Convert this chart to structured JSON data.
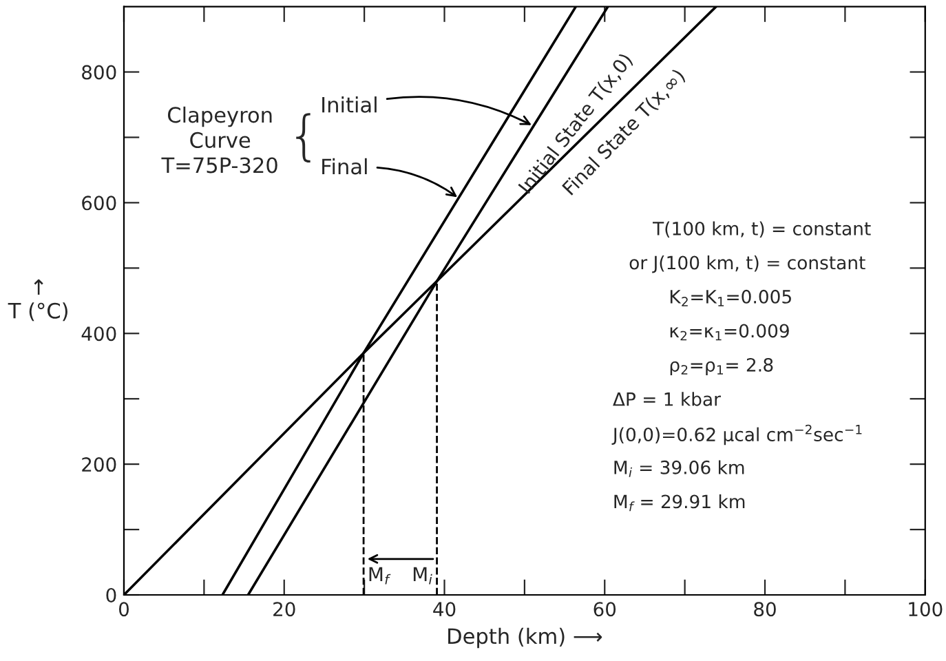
{
  "chart_data": {
    "type": "line",
    "xlabel": "Depth (km) ⟶",
    "ylabel": "↑\nT (°C)",
    "xlim": [
      0,
      100
    ],
    "ylim": [
      0,
      900
    ],
    "xticks": [
      0,
      {
        "value": 10,
        "label": null
      },
      20,
      {
        "value": 30,
        "label": null
      },
      40,
      {
        "value": 50,
        "label": null
      },
      60,
      {
        "value": 70,
        "label": null
      },
      80,
      {
        "value": 90,
        "label": null
      },
      100
    ],
    "yticks": [
      0,
      {
        "value": 100,
        "label": null
      },
      200,
      {
        "value": 300,
        "label": null
      },
      400,
      {
        "value": 500,
        "label": null
      },
      600,
      {
        "value": 700,
        "label": null
      },
      800
    ],
    "grid": false,
    "marker": "none",
    "line_style": "solid",
    "series": [
      {
        "color": "#000000",
        "x": [
          0,
          29.91,
          39.06,
          73.9
        ],
        "values": [
          0,
          370,
          480,
          900
        ]
      },
      {
        "color": "#000000",
        "x": [
          15.5,
          39.06,
          60.4
        ],
        "values": [
          0,
          480,
          900
        ]
      },
      {
        "color": "#000000",
        "x": [
          12.3,
          29.91,
          56.4
        ],
        "values": [
          0,
          370,
          900
        ]
      }
    ],
    "ref_lines": [
      {
        "axis": "x",
        "value": 29.91,
        "label": "M$_{f}$",
        "line_style": "dashed",
        "color": "#000000"
      },
      {
        "axis": "x",
        "value": 39.06,
        "label": "M$_{i}$",
        "line_style": "dashed",
        "color": "#000000"
      }
    ],
    "annotations": [
      "Clapeyron\nCurve\nT=75P-320",
      "{",
      {
        "text": "Initial",
        "x": 51.3,
        "y": 716
      },
      {
        "text": "Final",
        "x": 42.0,
        "y": 605
      },
      "Initial State T(x,0)",
      "Final State T(x,∞)",
      "T(100 km, t) = constant",
      "or J(100 km, t) = constant",
      "K$_{2}$=K$_{1}$=0.005",
      "κ$_{2}$=κ$_{1}$=0.009",
      "ρ$_{2}$=ρ$_{1}$= 2.8",
      "ΔP = 1 kbar",
      "J(0,0)=0.62 μcal cm$^{−2}$sec$^{−1}$",
      "M$_{i}$ = 39.06 km",
      "M$_{f}$ = 29.91 km"
    ]
  }
}
